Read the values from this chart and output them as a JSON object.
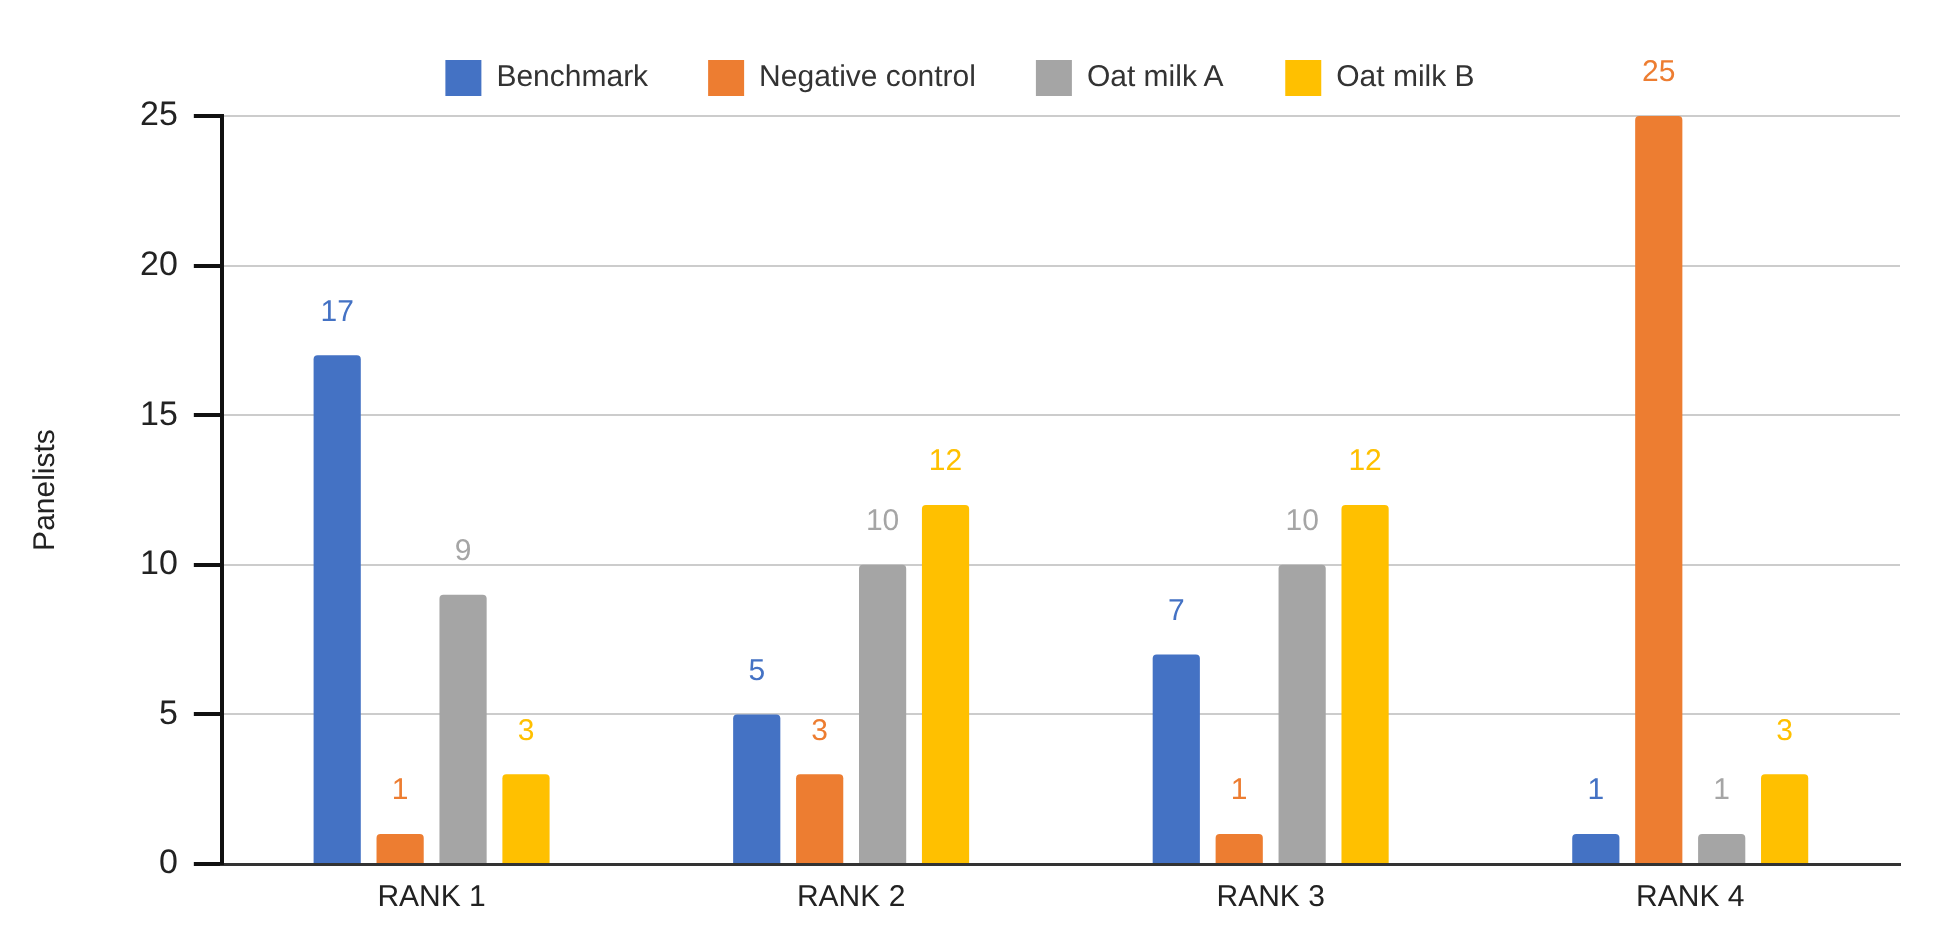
{
  "chart_data": {
    "type": "bar",
    "ylabel": "Panelists",
    "categories": [
      "RANK 1",
      "RANK 2",
      "RANK 3",
      "RANK 4"
    ],
    "series": [
      {
        "name": "Benchmark",
        "color": "#4472c4",
        "values": [
          17,
          5,
          7,
          1
        ]
      },
      {
        "name": "Negative control",
        "color": "#ed7d31",
        "values": [
          1,
          3,
          1,
          25
        ]
      },
      {
        "name": "Oat milk A",
        "color": "#a5a5a5",
        "values": [
          9,
          10,
          10,
          1
        ]
      },
      {
        "name": "Oat milk B",
        "color": "#ffc000",
        "values": [
          3,
          12,
          12,
          3
        ]
      }
    ],
    "ylim": [
      0,
      25
    ],
    "yticks": [
      0,
      5,
      10,
      15,
      20,
      25
    ],
    "grid": "y",
    "legend": "top",
    "data_labels": true
  }
}
